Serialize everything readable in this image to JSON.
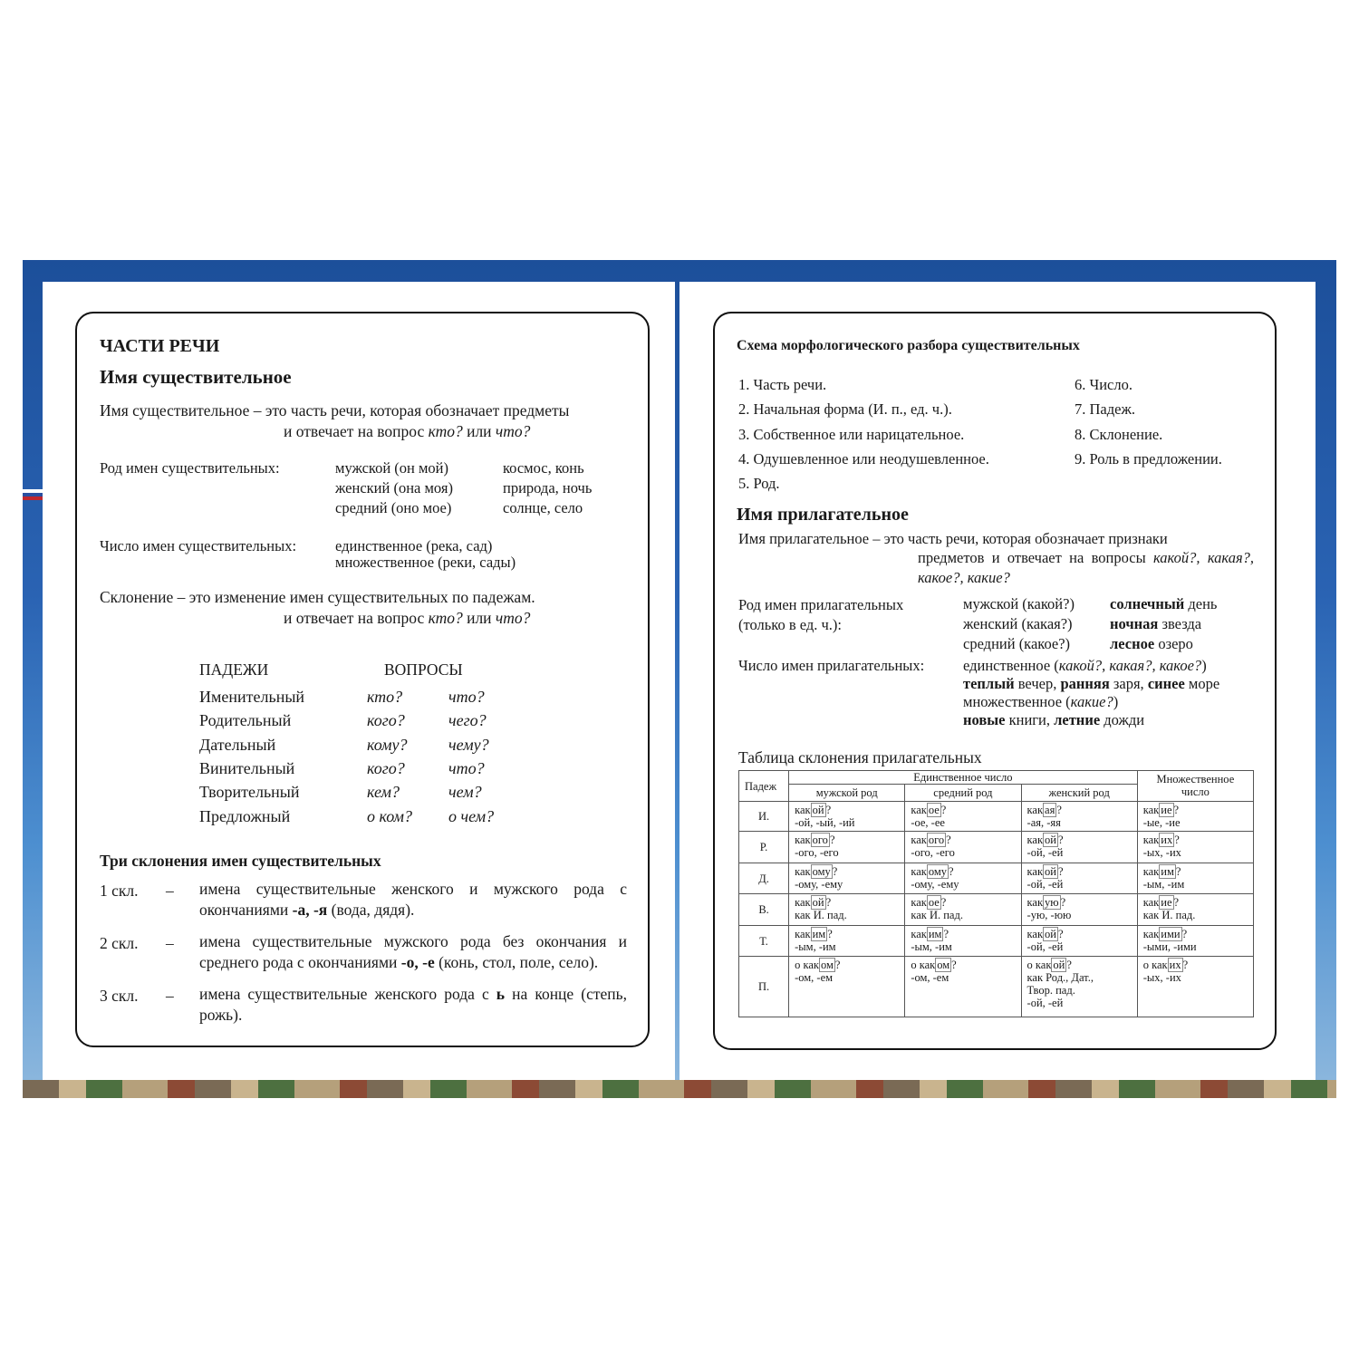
{
  "left": {
    "heading": "ЧАСТИ РЕЧИ",
    "title": "Имя существительное",
    "definition": [
      "Имя существительное – это часть речи, которая обозначает предметы",
      "и отвечает на вопрос ",
      "кто?",
      " или ",
      "что?"
    ],
    "gender": {
      "label": "Род имен существительных:",
      "forms": [
        "мужской (он мой)",
        "женский (она моя)",
        "средний (оно мое)"
      ],
      "examples": [
        "космос, конь",
        "природа, ночь",
        "солнце, село"
      ]
    },
    "number": {
      "label": "Число имен существительных:",
      "forms": [
        "единственное (река, сад)",
        "множественное (реки, сады)"
      ]
    },
    "declension_def": [
      "Склонение – это изменение имен существительных по падежам.",
      "и отвечает на вопрос ",
      "кто?",
      " или ",
      "что?"
    ],
    "cases": {
      "header": [
        "ПАДЕЖИ",
        "ВОПРОСЫ"
      ],
      "rows": [
        [
          "Именительный",
          "кто?",
          "что?"
        ],
        [
          "Родительный",
          "кого?",
          "чего?"
        ],
        [
          "Дательный",
          "кому?",
          "чему?"
        ],
        [
          "Винительный",
          "кого?",
          "что?"
        ],
        [
          "Творительный",
          "кем?",
          "чем?"
        ],
        [
          "Предложный",
          "о ком?",
          "о чем?"
        ]
      ]
    },
    "declensions": {
      "title": "Три склонения имен существительных",
      "items": [
        {
          "num": "1 скл.",
          "dash": "–",
          "text": [
            "имена существительные женского и мужского рода с окончаниями ",
            "-а, -я",
            " (вода, дядя)."
          ]
        },
        {
          "num": "2 скл.",
          "dash": "–",
          "text": [
            "имена существительные мужского рода без окончания и среднего рода с окончаниями ",
            "-о, -е",
            " (конь, стол, поле, село)."
          ]
        },
        {
          "num": "3 скл.",
          "dash": "–",
          "text": [
            "имена существительные женского рода с ",
            "ь",
            " на конце (степь, рожь)."
          ]
        }
      ]
    }
  },
  "right": {
    "scheme_title": "Схема морфологического разбора существительных",
    "scheme": [
      "1. Часть речи.",
      "2. Начальная форма (И. п., ед. ч.).",
      "3. Собственное или нарицательное.",
      "4. Одушевленное или неодушевленное.",
      "5. Род.",
      "6. Число.",
      "7. Падеж.",
      "8. Склонение.",
      "9. Роль в предложении."
    ],
    "title": "Имя прилагательное",
    "definition": [
      "Имя прилагательное – это часть речи, которая обозначает признаки",
      "предметов и отвечает на вопросы ",
      "какой?, какая?, какое?, какие?"
    ],
    "gender": {
      "label": "Род имен прилагательных (только в ед. ч.):",
      "forms": [
        "мужской (какой?)",
        "женский (какая?)",
        "средний (какое?)"
      ],
      "examples": [
        [
          "солнечный",
          " день"
        ],
        [
          "ночная",
          " звезда"
        ],
        [
          "лесное",
          " озеро"
        ]
      ]
    },
    "number": {
      "label": "Число имен прилагательных:",
      "lines": [
        [
          "единственное (",
          "какой?, какая?, какое?",
          ")"
        ],
        [
          "теплый",
          " вечер, ",
          "ранняя",
          " заря, ",
          "синее",
          " море"
        ],
        [
          "множественное (",
          "какие?",
          ")"
        ],
        [
          "новые",
          " книги, ",
          "летние",
          " дожди"
        ]
      ]
    },
    "table": {
      "title": "Таблица склонения прилагательных",
      "case_header": "Падеж",
      "singular": "Единственное число",
      "plural": "Множественное число",
      "genders": [
        "мужской род",
        "средний род",
        "женский род"
      ],
      "rows": [
        {
          "case": "И.",
          "cells": [
            {
              "word": [
                "как",
                "ой",
                "?"
              ],
              "lines": [
                "-ой, -ый, -ий"
              ]
            },
            {
              "word": [
                "как",
                "ое",
                "?"
              ],
              "lines": [
                "-ое, -ее"
              ]
            },
            {
              "word": [
                "как",
                "ая",
                "?"
              ],
              "lines": [
                "-ая, -яя"
              ]
            },
            {
              "word": [
                "как",
                "ие",
                "?"
              ],
              "lines": [
                "-ые, -ие"
              ]
            }
          ]
        },
        {
          "case": "Р.",
          "cells": [
            {
              "word": [
                "как",
                "ого",
                "?"
              ],
              "lines": [
                "-ого, -его"
              ]
            },
            {
              "word": [
                "как",
                "ого",
                "?"
              ],
              "lines": [
                "-ого, -его"
              ]
            },
            {
              "word": [
                "как",
                "ой",
                "?"
              ],
              "lines": [
                "-ой, -ей"
              ]
            },
            {
              "word": [
                "как",
                "их",
                "?"
              ],
              "lines": [
                "-ых, -их"
              ]
            }
          ]
        },
        {
          "case": "Д.",
          "cells": [
            {
              "word": [
                "как",
                "ому",
                "?"
              ],
              "lines": [
                "-ому, -ему"
              ]
            },
            {
              "word": [
                "как",
                "ому",
                "?"
              ],
              "lines": [
                "-ому, -ему"
              ]
            },
            {
              "word": [
                "как",
                "ой",
                "?"
              ],
              "lines": [
                "-ой, -ей"
              ]
            },
            {
              "word": [
                "как",
                "им",
                "?"
              ],
              "lines": [
                "-ым, -им"
              ]
            }
          ]
        },
        {
          "case": "В.",
          "cells": [
            {
              "word": [
                "как",
                "ой",
                "?"
              ],
              "lines": [
                "как И. пад."
              ]
            },
            {
              "word": [
                "как",
                "ое",
                "?"
              ],
              "lines": [
                "как И. пад."
              ]
            },
            {
              "word": [
                "как",
                "ую",
                "?"
              ],
              "lines": [
                "-ую, -юю"
              ]
            },
            {
              "word": [
                "как",
                "ие",
                "?"
              ],
              "lines": [
                "как И. пад."
              ]
            }
          ]
        },
        {
          "case": "Т.",
          "cells": [
            {
              "word": [
                "как",
                "им",
                "?"
              ],
              "lines": [
                "-ым, -им"
              ]
            },
            {
              "word": [
                "как",
                "им",
                "?"
              ],
              "lines": [
                "-ым, -им"
              ]
            },
            {
              "word": [
                "как",
                "ой",
                "?"
              ],
              "lines": [
                "-ой, -ей"
              ]
            },
            {
              "word": [
                "как",
                "ими",
                "?"
              ],
              "lines": [
                "-ыми, -ими"
              ]
            }
          ]
        },
        {
          "case": "П.",
          "cells": [
            {
              "word": [
                "о как",
                "ом",
                "?"
              ],
              "lines": [
                "-ом, -ем"
              ]
            },
            {
              "word": [
                "о как",
                "ом",
                "?"
              ],
              "lines": [
                "-ом, -ем"
              ]
            },
            {
              "word": [
                "о как",
                "ой",
                "?"
              ],
              "lines": [
                "как Род., Дат.,",
                "Твор. пад.",
                "-ой, -ей"
              ]
            },
            {
              "word": [
                "о как",
                "их",
                "?"
              ],
              "lines": [
                "-ых, -их"
              ]
            }
          ]
        }
      ]
    }
  }
}
